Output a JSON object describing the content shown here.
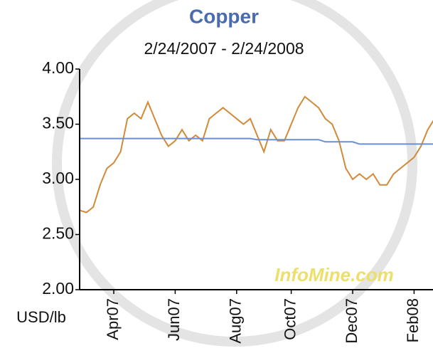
{
  "chart_data": {
    "type": "line",
    "title": "Copper",
    "subtitle": "2/24/2007 - 2/24/2008",
    "y_label": "USD/lb",
    "watermark": "InfoMine.com",
    "categories": [
      null,
      null,
      null,
      null,
      null,
      "Apr07",
      null,
      null,
      null,
      null,
      null,
      null,
      null,
      null,
      "Jun07",
      null,
      null,
      null,
      null,
      null,
      null,
      null,
      null,
      "Aug07",
      null,
      null,
      null,
      null,
      null,
      null,
      null,
      "Oct07",
      null,
      null,
      null,
      null,
      null,
      null,
      null,
      null,
      "Dec07",
      null,
      null,
      null,
      null,
      null,
      null,
      null,
      null,
      "Feb08",
      null,
      null,
      null
    ],
    "series": [
      {
        "color": "#d08a3a",
        "values": [
          2.72,
          2.7,
          2.75,
          2.95,
          3.1,
          3.15,
          3.25,
          3.55,
          3.6,
          3.55,
          3.7,
          3.55,
          3.4,
          3.3,
          3.35,
          3.45,
          3.35,
          3.4,
          3.35,
          3.55,
          3.6,
          3.65,
          3.6,
          3.55,
          3.5,
          3.55,
          3.4,
          3.25,
          3.45,
          3.35,
          3.35,
          3.5,
          3.65,
          3.75,
          3.7,
          3.65,
          3.55,
          3.5,
          3.35,
          3.1,
          3.0,
          3.05,
          3.0,
          3.05,
          2.95,
          2.95,
          3.05,
          3.1,
          3.15,
          3.2,
          3.3,
          3.45,
          3.55
        ]
      },
      {
        "color": "#6a8fd0",
        "values": [
          3.37,
          3.37,
          3.37,
          3.37,
          3.37,
          3.37,
          3.37,
          3.37,
          3.37,
          3.37,
          3.37,
          3.37,
          3.37,
          3.37,
          3.37,
          3.37,
          3.37,
          3.37,
          3.37,
          3.37,
          3.37,
          3.37,
          3.37,
          3.37,
          3.37,
          3.37,
          3.36,
          3.36,
          3.36,
          3.36,
          3.36,
          3.36,
          3.36,
          3.36,
          3.36,
          3.36,
          3.34,
          3.34,
          3.34,
          3.34,
          3.34,
          3.32,
          3.32,
          3.32,
          3.32,
          3.32,
          3.32,
          3.32,
          3.32,
          3.32,
          3.32,
          3.32,
          3.32
        ]
      }
    ],
    "ylim": [
      2,
      4
    ],
    "yticks": [
      {
        "value": 2,
        "label": "2.00"
      },
      {
        "value": 2.5,
        "label": "2.50"
      },
      {
        "value": 3,
        "label": "3.00"
      },
      {
        "value": 3.5,
        "label": "3.50"
      },
      {
        "value": 4,
        "label": "4.00"
      }
    ],
    "grid": false
  }
}
